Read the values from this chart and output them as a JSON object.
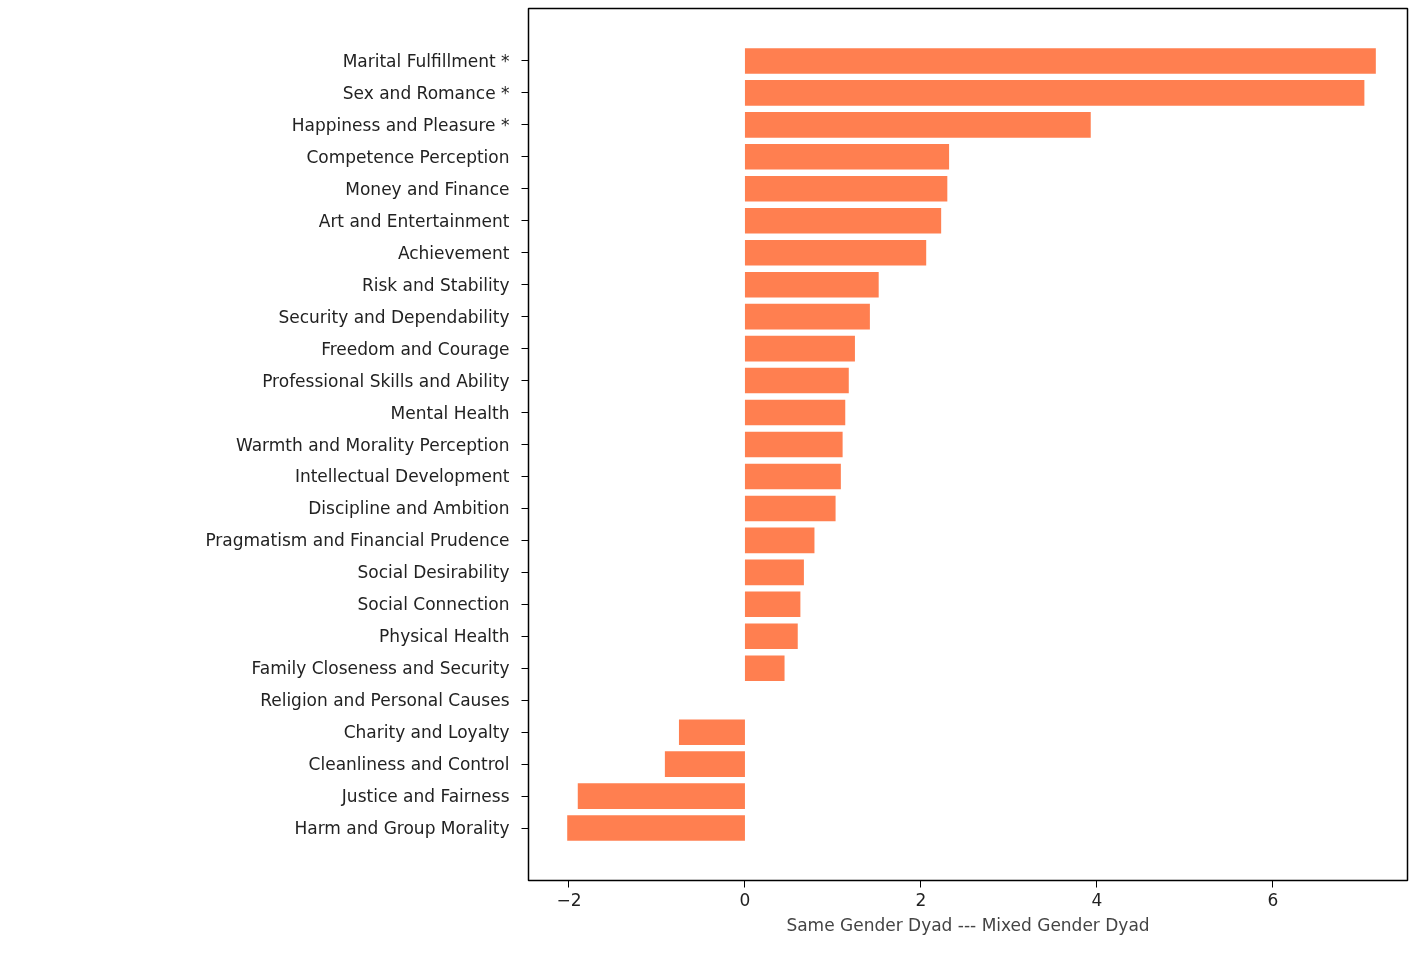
{
  "chart_data": {
    "type": "bar",
    "orientation": "horizontal",
    "xlabel": "Same Gender Dyad --- Mixed Gender Dyad",
    "categories": [
      "Marital Fulfillment *",
      "Sex and Romance *",
      "Happiness and Pleasure *",
      "Competence Perception",
      "Money and Finance",
      "Art and Entertainment",
      "Achievement",
      "Risk and Stability",
      "Security and Dependability",
      "Freedom and Courage",
      "Professional Skills and Ability",
      "Mental Health",
      "Warmth and Morality Perception",
      "Intellectual Development",
      "Discipline and Ambition",
      "Pragmatism and Financial Prudence",
      "Social Desirability",
      "Social Connection",
      "Physical Health",
      "Family Closeness and Security",
      "Religion and Personal Causes",
      "Charity and Loyalty",
      "Cleanliness and Control",
      "Justice and Fairness",
      "Harm and Group Morality"
    ],
    "values": [
      7.17,
      7.04,
      3.93,
      2.32,
      2.3,
      2.23,
      2.06,
      1.52,
      1.42,
      1.25,
      1.18,
      1.14,
      1.11,
      1.09,
      1.03,
      0.79,
      0.67,
      0.63,
      0.6,
      0.45,
      0.0,
      -0.75,
      -0.91,
      -1.9,
      -2.02
    ],
    "color": "#ff7f50",
    "xlim": [
      -2.46,
      7.53
    ],
    "xticks": [
      {
        "value": -2,
        "label": "−2"
      },
      0,
      2,
      4,
      6
    ],
    "grid": false
  }
}
